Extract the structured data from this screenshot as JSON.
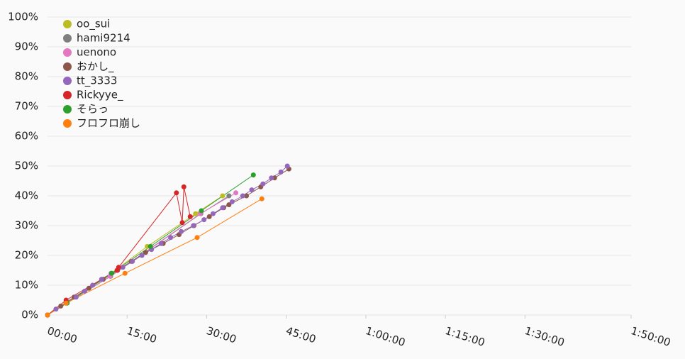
{
  "chart_data": {
    "type": "line",
    "xlim": [
      0,
      110
    ],
    "xticks": [
      {
        "value": 0,
        "label": "00:00"
      },
      {
        "value": 15,
        "label": "15:00"
      },
      {
        "value": 30,
        "label": "30:00"
      },
      {
        "value": 45,
        "label": "45:00"
      },
      {
        "value": 60,
        "label": "1:00:00"
      },
      {
        "value": 75,
        "label": "1:15:00"
      },
      {
        "value": 90,
        "label": "1:30:00"
      },
      {
        "value": 110,
        "label": "1:50:00"
      }
    ],
    "ylim": [
      0,
      100
    ],
    "yticks": [
      {
        "value": 0,
        "label": "0%"
      },
      {
        "value": 10,
        "label": "10%"
      },
      {
        "value": 20,
        "label": "20%"
      },
      {
        "value": 30,
        "label": "30%"
      },
      {
        "value": 40,
        "label": "40%"
      },
      {
        "value": 50,
        "label": "50%"
      },
      {
        "value": 60,
        "label": "60%"
      },
      {
        "value": 70,
        "label": "70%"
      },
      {
        "value": 80,
        "label": "80%"
      },
      {
        "value": 90,
        "label": "90%"
      },
      {
        "value": 100,
        "label": "100%"
      }
    ],
    "grid": true,
    "legend": "top-left",
    "series": [
      {
        "name": "oo_sui",
        "color": "#bcbd22",
        "x": [
          0,
          3.7,
          12.0,
          18.8,
          27.9,
          33.0
        ],
        "values": [
          0,
          4,
          14,
          23,
          34,
          40
        ]
      },
      {
        "name": "hami9214",
        "color": "#7f7f7f",
        "x": [
          0,
          11.9,
          28.9,
          34.2
        ],
        "values": [
          0,
          13,
          34,
          40
        ]
      },
      {
        "name": "uenono",
        "color": "#e377c2",
        "x": [
          0,
          11.8,
          28.8,
          35.5
        ],
        "values": [
          0,
          13,
          34,
          41
        ]
      },
      {
        "name": "おかし_",
        "color": "#8c564b",
        "x": [
          0,
          2.5,
          5.0,
          7.8,
          10.5,
          13.2,
          15.8,
          18.5,
          21.8,
          24.8,
          27.6,
          30.5,
          33.2,
          34.2,
          37.5,
          40.2,
          42.8,
          45.5
        ],
        "values": [
          0,
          3,
          6,
          9,
          12,
          15,
          18,
          21,
          24,
          27,
          30,
          33,
          36,
          37,
          40,
          43,
          46,
          49
        ]
      },
      {
        "name": "tt_3333",
        "color": "#9467bd",
        "x": [
          0,
          1.6,
          3.5,
          5.4,
          7.0,
          8.5,
          10.2,
          12.0,
          14.2,
          16.0,
          17.8,
          19.6,
          21.4,
          23.2,
          25.2,
          27.5,
          29.5,
          31.2,
          33.0,
          34.8,
          36.8,
          38.5,
          40.6,
          42.2,
          44.0,
          45.2
        ],
        "values": [
          0,
          2,
          4,
          6,
          8,
          10,
          12,
          14,
          16,
          18,
          20,
          22,
          24,
          26,
          28,
          30,
          32,
          34,
          36,
          38,
          40,
          42,
          44,
          46,
          48,
          50
        ]
      },
      {
        "name": "Rickyye_",
        "color": "#d62728",
        "x": [
          0,
          3.5,
          13.1,
          13.4,
          24.3,
          25.4,
          25.7,
          26.9
        ],
        "values": [
          0,
          5,
          15,
          16,
          41,
          31,
          43,
          33
        ]
      },
      {
        "name": "そらっ",
        "color": "#2ca02c",
        "x": [
          0,
          3.7,
          12.1,
          19.4,
          29.0,
          38.8
        ],
        "values": [
          0,
          4,
          14,
          23,
          35,
          47
        ]
      },
      {
        "name": "フロフロ崩し",
        "color": "#ff7f0e",
        "x": [
          0,
          3.5,
          14.6,
          28.2,
          40.4
        ],
        "values": [
          0,
          4,
          14,
          26,
          39
        ]
      }
    ]
  }
}
